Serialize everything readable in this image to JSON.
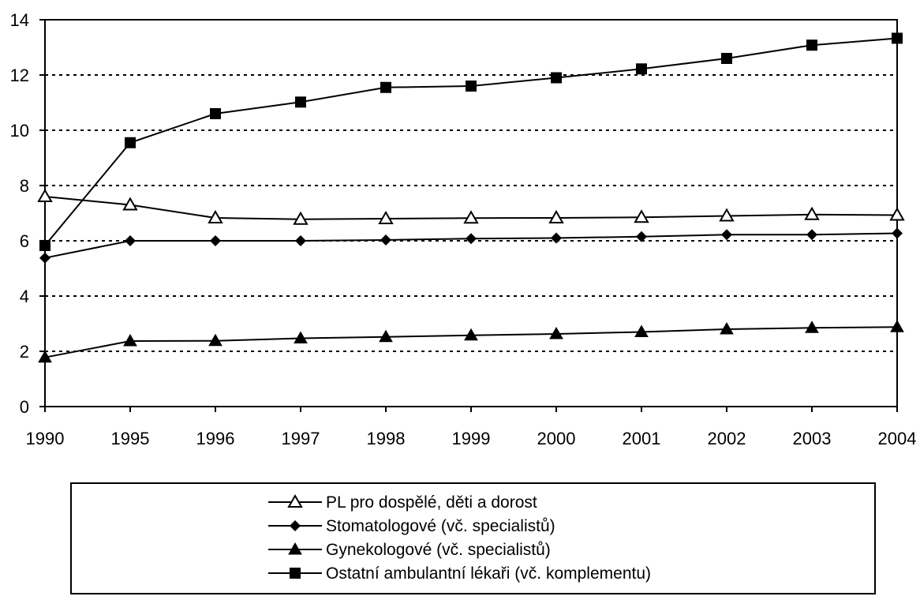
{
  "chart_data": {
    "type": "line",
    "title": "",
    "xlabel": "",
    "ylabel": "",
    "categories": [
      "1990",
      "1995",
      "1996",
      "1997",
      "1998",
      "1999",
      "2000",
      "2001",
      "2002",
      "2003",
      "2004"
    ],
    "ylim": [
      0,
      14
    ],
    "yticks": [
      "0",
      "2",
      "4",
      "6",
      "8",
      "10",
      "12",
      "14"
    ],
    "grid": "horizontal-dotted",
    "legend_position": "bottom",
    "series": [
      {
        "name": "PL pro dospělé, děti a dorost",
        "marker": "triangle-open",
        "values": [
          7.6,
          7.3,
          6.83,
          6.78,
          6.8,
          6.82,
          6.83,
          6.85,
          6.9,
          6.95,
          6.93
        ]
      },
      {
        "name": "Stomatologové (vč. specialistů)",
        "marker": "diamond-filled",
        "values": [
          5.38,
          6.0,
          6.0,
          6.0,
          6.03,
          6.08,
          6.1,
          6.15,
          6.22,
          6.22,
          6.27
        ]
      },
      {
        "name": "Gynekologové (vč. specialistů)",
        "marker": "triangle-filled",
        "values": [
          1.78,
          2.37,
          2.38,
          2.47,
          2.52,
          2.58,
          2.63,
          2.7,
          2.8,
          2.85,
          2.88
        ]
      },
      {
        "name": "Ostatní ambulantní lékaři (vč. komplementu)",
        "marker": "square-filled",
        "values": [
          5.83,
          9.55,
          10.6,
          11.02,
          11.55,
          11.6,
          11.9,
          12.22,
          12.6,
          13.08,
          13.33
        ]
      }
    ]
  }
}
